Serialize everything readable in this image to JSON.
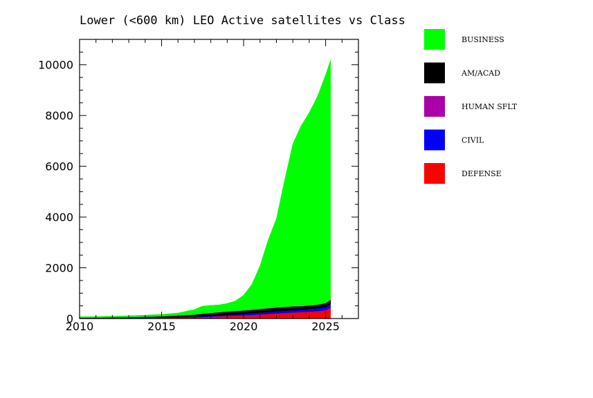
{
  "chart_data": {
    "type": "area",
    "title": "Lower (<600 km) LEO Active satellites vs Class",
    "xlabel": "",
    "ylabel": "",
    "stacked": true,
    "xlim": [
      2010,
      2027
    ],
    "ylim": [
      0,
      11000
    ],
    "x_ticks": [
      2010,
      2015,
      2020,
      2025
    ],
    "x_tick_labels": [
      "2010",
      "2015",
      "2020",
      "2025"
    ],
    "y_ticks": [
      0,
      2000,
      4000,
      6000,
      8000,
      10000
    ],
    "y_tick_labels": [
      "0",
      "2000",
      "4000",
      "6000",
      "8000",
      "10000"
    ],
    "legend_position": "right",
    "x": [
      2010,
      2011,
      2012,
      2013,
      2014,
      2015,
      2016,
      2017,
      2017.5,
      2018,
      2018.5,
      2019,
      2019.5,
      2020,
      2020.5,
      2021,
      2021.5,
      2022,
      2022.5,
      2023,
      2023.5,
      2024,
      2024.5,
      2025,
      2025.3
    ],
    "series": [
      {
        "name": "DEFENSE",
        "color": "#ff0000",
        "values": [
          10,
          12,
          15,
          18,
          22,
          28,
          35,
          45,
          55,
          70,
          85,
          100,
          110,
          125,
          140,
          160,
          180,
          200,
          220,
          240,
          250,
          270,
          290,
          330,
          420
        ]
      },
      {
        "name": "CIVIL",
        "color": "#0000ff",
        "values": [
          8,
          9,
          10,
          12,
          15,
          18,
          22,
          28,
          32,
          38,
          42,
          48,
          52,
          58,
          62,
          68,
          72,
          78,
          82,
          88,
          92,
          98,
          105,
          115,
          140
        ]
      },
      {
        "name": "HUMAN SFLT",
        "color": "#aa00aa",
        "values": [
          3,
          3,
          3,
          3,
          3,
          3,
          3,
          3,
          3,
          3,
          3,
          3,
          3,
          3,
          3,
          3,
          3,
          3,
          3,
          3,
          3,
          3,
          3,
          3,
          3
        ]
      },
      {
        "name": "AM/ACAD",
        "color": "#000000",
        "values": [
          10,
          12,
          15,
          20,
          30,
          40,
          60,
          80,
          100,
          110,
          120,
          125,
          130,
          135,
          140,
          145,
          150,
          155,
          150,
          150,
          145,
          145,
          150,
          160,
          170
        ]
      },
      {
        "name": "BUSINESS",
        "color": "#00ff00",
        "values": [
          40,
          45,
          50,
          55,
          65,
          75,
          100,
          200,
          300,
          300,
          290,
          320,
          400,
          600,
          1000,
          1700,
          2700,
          3500,
          5000,
          6400,
          7100,
          7600,
          8200,
          9000,
          9450
        ]
      }
    ]
  }
}
